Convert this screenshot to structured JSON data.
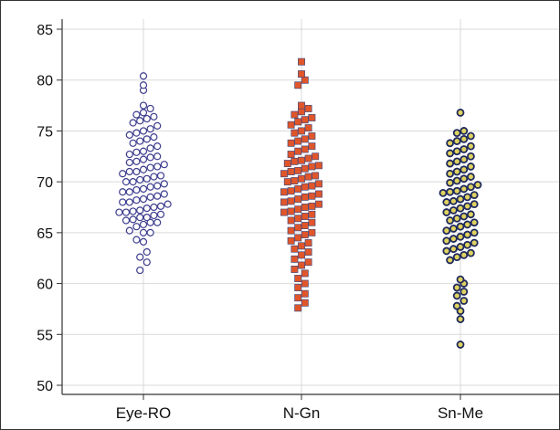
{
  "chart_data": {
    "type": "scatter",
    "subtype": "dot-plot",
    "categories": [
      "Eye-RO",
      "N-Gn",
      "Sn-Me"
    ],
    "ylim": [
      49,
      86
    ],
    "yticks": [
      50,
      55,
      60,
      65,
      70,
      75,
      80,
      85
    ],
    "grid": true,
    "series": [
      {
        "marker": "circle-open",
        "color": "#3d3d8f",
        "fill": "#ffffff",
        "values": [
          61.3,
          62.1,
          62.6,
          63.1,
          64.1,
          64.3,
          65.0,
          65.0,
          65.2,
          65.6,
          65.8,
          66.0,
          66.0,
          66.2,
          66.3,
          66.5,
          66.5,
          66.7,
          66.8,
          67.0,
          67.0,
          67.1,
          67.2,
          67.4,
          67.5,
          67.6,
          67.8,
          68.0,
          68.0,
          68.2,
          68.3,
          68.5,
          68.6,
          68.8,
          69.0,
          69.0,
          69.2,
          69.3,
          69.5,
          69.6,
          69.8,
          70.0,
          70.0,
          70.2,
          70.3,
          70.5,
          70.6,
          70.8,
          71.0,
          71.0,
          71.2,
          71.4,
          71.5,
          71.7,
          71.9,
          72.0,
          72.2,
          72.4,
          72.5,
          72.7,
          72.9,
          73.0,
          73.3,
          73.5,
          73.8,
          74.0,
          74.2,
          74.4,
          74.6,
          74.8,
          75.0,
          75.2,
          75.5,
          75.8,
          76.0,
          76.2,
          76.4,
          76.6,
          76.8,
          77.2,
          77.5,
          79.0,
          79.5,
          80.4
        ]
      },
      {
        "marker": "square-filled",
        "color": "#e0562a",
        "stroke": "#4a4a7a",
        "values": [
          57.6,
          58.1,
          58.6,
          59.0,
          59.6,
          60.0,
          60.5,
          61.0,
          61.4,
          61.8,
          62.1,
          62.4,
          62.8,
          63.1,
          63.4,
          63.7,
          64.0,
          64.2,
          64.5,
          64.8,
          65.0,
          65.2,
          65.5,
          65.7,
          66.0,
          66.2,
          66.4,
          66.6,
          66.8,
          67.0,
          67.1,
          67.3,
          67.5,
          67.6,
          67.8,
          68.0,
          68.1,
          68.3,
          68.5,
          68.6,
          68.8,
          69.0,
          69.1,
          69.3,
          69.5,
          69.6,
          69.8,
          70.0,
          70.1,
          70.3,
          70.5,
          70.6,
          70.8,
          71.0,
          71.1,
          71.3,
          71.5,
          71.6,
          71.8,
          72.0,
          72.1,
          72.3,
          72.5,
          72.7,
          73.0,
          73.2,
          73.5,
          73.8,
          74.0,
          74.2,
          74.5,
          74.8,
          75.0,
          75.3,
          75.6,
          75.9,
          76.1,
          76.3,
          76.6,
          76.9,
          77.2,
          77.5,
          79.5,
          80.0,
          80.6,
          81.8
        ]
      },
      {
        "marker": "circle-filled",
        "color": "#1f2a5c",
        "fill": "#e0d260",
        "values": [
          54.0,
          56.5,
          57.3,
          57.8,
          58.3,
          58.8,
          59.2,
          59.6,
          60.0,
          60.4,
          62.3,
          62.6,
          62.8,
          63.0,
          63.2,
          63.4,
          63.6,
          63.8,
          64.0,
          64.2,
          64.4,
          64.6,
          64.8,
          65.0,
          65.2,
          65.4,
          65.6,
          65.8,
          66.0,
          66.2,
          66.4,
          66.6,
          66.8,
          67.0,
          67.2,
          67.4,
          67.6,
          67.8,
          68.0,
          68.1,
          68.3,
          68.5,
          68.7,
          68.9,
          69.0,
          69.1,
          69.3,
          69.5,
          69.7,
          69.9,
          70.1,
          70.3,
          70.5,
          70.8,
          71.0,
          71.2,
          71.5,
          71.8,
          72.0,
          72.2,
          72.5,
          72.8,
          73.0,
          73.2,
          73.5,
          73.8,
          74.0,
          74.2,
          74.5,
          74.8,
          75.0,
          76.8
        ]
      }
    ]
  }
}
